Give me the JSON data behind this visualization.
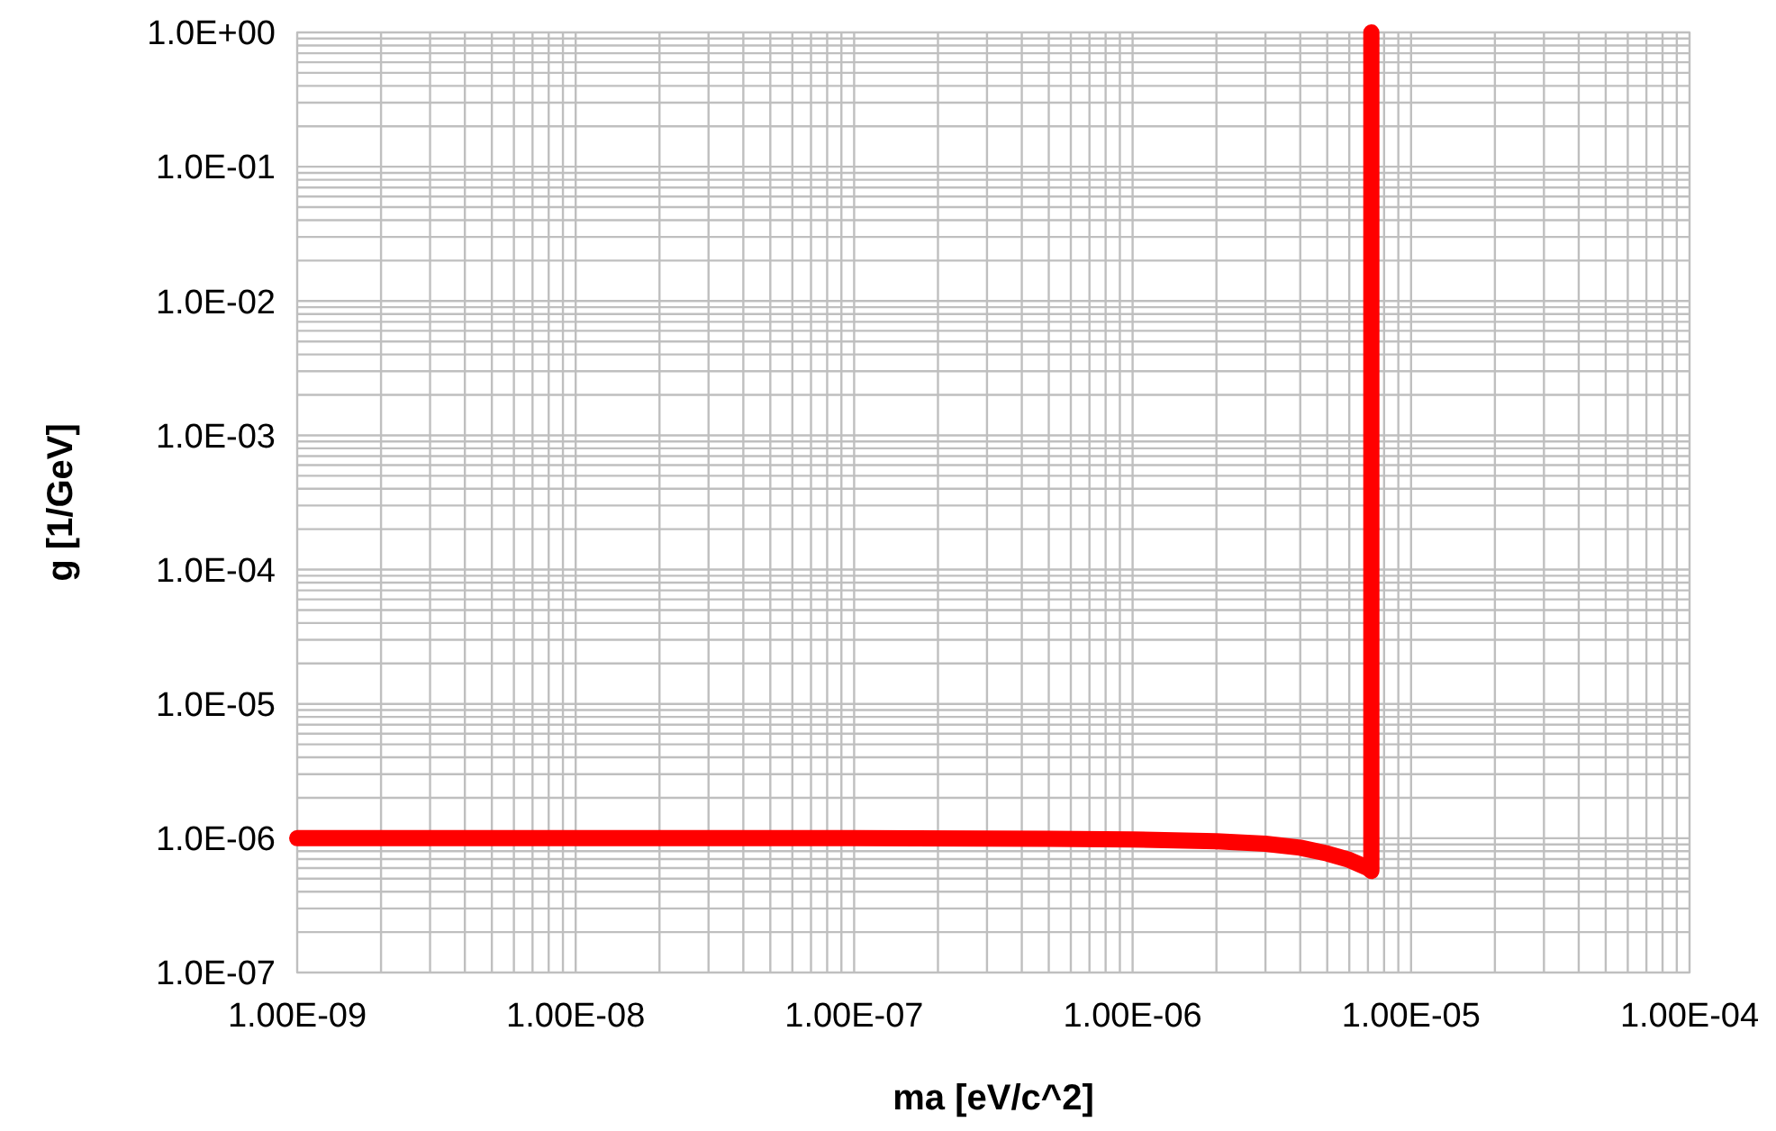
{
  "chart_data": {
    "type": "line",
    "xlabel": "ma [eV/c^2]",
    "ylabel": "g [1/GeV]",
    "log": "xy",
    "grid": true,
    "marker": "none",
    "line_style": "solid",
    "xlim": [
      1e-09,
      0.0001
    ],
    "ylim": [
      1e-07,
      1
    ],
    "xticks": [
      {
        "value": 1e-09,
        "label": "1.00E-09"
      },
      {
        "value": 2e-09,
        "label": null
      },
      {
        "value": 3e-09,
        "label": null
      },
      {
        "value": 4e-09,
        "label": null
      },
      {
        "value": 5e-09,
        "label": null
      },
      {
        "value": 6e-09,
        "label": null
      },
      {
        "value": 7e-09,
        "label": null
      },
      {
        "value": 8e-09,
        "label": null
      },
      {
        "value": 9e-09,
        "label": null
      },
      {
        "value": 1e-08,
        "label": "1.00E-08"
      },
      {
        "value": 2e-08,
        "label": null
      },
      {
        "value": 3e-08,
        "label": null
      },
      {
        "value": 4e-08,
        "label": null
      },
      {
        "value": 5e-08,
        "label": null
      },
      {
        "value": 6e-08,
        "label": null
      },
      {
        "value": 7e-08,
        "label": null
      },
      {
        "value": 8e-08,
        "label": null
      },
      {
        "value": 9e-08,
        "label": null
      },
      {
        "value": 1e-07,
        "label": "1.00E-07"
      },
      {
        "value": 2e-07,
        "label": null
      },
      {
        "value": 3e-07,
        "label": null
      },
      {
        "value": 4e-07,
        "label": null
      },
      {
        "value": 5e-07,
        "label": null
      },
      {
        "value": 6e-07,
        "label": null
      },
      {
        "value": 7e-07,
        "label": null
      },
      {
        "value": 8e-07,
        "label": null
      },
      {
        "value": 9e-07,
        "label": null
      },
      {
        "value": 1e-06,
        "label": "1.00E-06"
      },
      {
        "value": 2e-06,
        "label": null
      },
      {
        "value": 3e-06,
        "label": null
      },
      {
        "value": 4e-06,
        "label": null
      },
      {
        "value": 5e-06,
        "label": null
      },
      {
        "value": 6e-06,
        "label": null
      },
      {
        "value": 7e-06,
        "label": null
      },
      {
        "value": 8e-06,
        "label": null
      },
      {
        "value": 9e-06,
        "label": null
      },
      {
        "value": 1e-05,
        "label": "1.00E-05"
      },
      {
        "value": 2e-05,
        "label": null
      },
      {
        "value": 3e-05,
        "label": null
      },
      {
        "value": 4e-05,
        "label": null
      },
      {
        "value": 5e-05,
        "label": null
      },
      {
        "value": 6e-05,
        "label": null
      },
      {
        "value": 7e-05,
        "label": null
      },
      {
        "value": 8e-05,
        "label": null
      },
      {
        "value": 9e-05,
        "label": null
      },
      {
        "value": 0.0001,
        "label": "1.00E-04"
      }
    ],
    "yticks": [
      {
        "value": 1e-07,
        "label": "1.0E-07"
      },
      {
        "value": 2e-07,
        "label": null
      },
      {
        "value": 3e-07,
        "label": null
      },
      {
        "value": 4e-07,
        "label": null
      },
      {
        "value": 5e-07,
        "label": null
      },
      {
        "value": 6e-07,
        "label": null
      },
      {
        "value": 7e-07,
        "label": null
      },
      {
        "value": 8e-07,
        "label": null
      },
      {
        "value": 9e-07,
        "label": null
      },
      {
        "value": 1e-06,
        "label": "1.0E-06"
      },
      {
        "value": 2e-06,
        "label": null
      },
      {
        "value": 3e-06,
        "label": null
      },
      {
        "value": 4e-06,
        "label": null
      },
      {
        "value": 5e-06,
        "label": null
      },
      {
        "value": 6e-06,
        "label": null
      },
      {
        "value": 7e-06,
        "label": null
      },
      {
        "value": 8e-06,
        "label": null
      },
      {
        "value": 9e-06,
        "label": null
      },
      {
        "value": 1e-05,
        "label": "1.0E-05"
      },
      {
        "value": 2e-05,
        "label": null
      },
      {
        "value": 3e-05,
        "label": null
      },
      {
        "value": 4e-05,
        "label": null
      },
      {
        "value": 5e-05,
        "label": null
      },
      {
        "value": 6e-05,
        "label": null
      },
      {
        "value": 7e-05,
        "label": null
      },
      {
        "value": 8e-05,
        "label": null
      },
      {
        "value": 9e-05,
        "label": null
      },
      {
        "value": 0.0001,
        "label": "1.0E-04"
      },
      {
        "value": 0.0002,
        "label": null
      },
      {
        "value": 0.0003,
        "label": null
      },
      {
        "value": 0.0004,
        "label": null
      },
      {
        "value": 0.0005,
        "label": null
      },
      {
        "value": 0.0006,
        "label": null
      },
      {
        "value": 0.0007,
        "label": null
      },
      {
        "value": 0.0008,
        "label": null
      },
      {
        "value": 0.0009,
        "label": null
      },
      {
        "value": 0.001,
        "label": "1.0E-03"
      },
      {
        "value": 0.002,
        "label": null
      },
      {
        "value": 0.003,
        "label": null
      },
      {
        "value": 0.004,
        "label": null
      },
      {
        "value": 0.005,
        "label": null
      },
      {
        "value": 0.006,
        "label": null
      },
      {
        "value": 0.007,
        "label": null
      },
      {
        "value": 0.008,
        "label": null
      },
      {
        "value": 0.009,
        "label": null
      },
      {
        "value": 0.01,
        "label": "1.0E-02"
      },
      {
        "value": 0.02,
        "label": null
      },
      {
        "value": 0.03,
        "label": null
      },
      {
        "value": 0.04,
        "label": null
      },
      {
        "value": 0.05,
        "label": null
      },
      {
        "value": 0.06,
        "label": null
      },
      {
        "value": 0.07,
        "label": null
      },
      {
        "value": 0.08,
        "label": null
      },
      {
        "value": 0.09,
        "label": null
      },
      {
        "value": 0.1,
        "label": "1.0E-01"
      },
      {
        "value": 0.2,
        "label": null
      },
      {
        "value": 0.3,
        "label": null
      },
      {
        "value": 0.4,
        "label": null
      },
      {
        "value": 0.5,
        "label": null
      },
      {
        "value": 0.6,
        "label": null
      },
      {
        "value": 0.7,
        "label": null
      },
      {
        "value": 0.8,
        "label": null
      },
      {
        "value": 0.9,
        "label": null
      },
      {
        "value": 1,
        "label": "1.0E+00"
      }
    ],
    "x": [
      1e-09,
      1e-08,
      1e-07,
      5e-07,
      1e-06,
      2e-06,
      3e-06,
      4e-06,
      5e-06,
      6e-06,
      7e-06,
      7.2e-06,
      7.2e-06
    ],
    "series": [
      {
        "color": "#ff0000",
        "values": [
          1e-06,
          1e-06,
          1e-06,
          9.9e-07,
          9.8e-07,
          9.5e-07,
          9.1e-07,
          8.5e-07,
          7.7e-07,
          6.9e-07,
          6e-07,
          5.7e-07,
          1
        ]
      }
    ]
  }
}
